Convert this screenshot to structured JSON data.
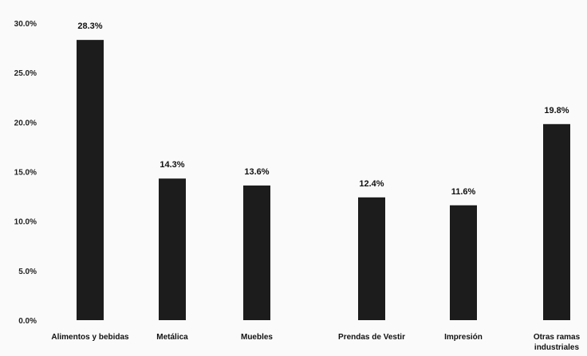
{
  "chart_data": {
    "type": "bar",
    "categories": [
      "Alimentos y bebidas",
      "Metálica",
      "Muebles",
      "Prendas de Vestir",
      "Impresión",
      "Otras ramas industriales"
    ],
    "values": [
      28.3,
      14.3,
      13.6,
      12.4,
      11.6,
      19.8
    ],
    "value_labels": [
      "28.3%",
      "14.3%",
      "13.6%",
      "12.4%",
      "11.6%",
      "19.8%"
    ],
    "ytick_labels": [
      "0.0%",
      "5.0%",
      "10.0%",
      "15.0%",
      "20.0%",
      "25.0%",
      "30.0%"
    ],
    "ylim": [
      0,
      30
    ],
    "title": "",
    "xlabel": "",
    "ylabel": "",
    "grid": false,
    "legend": "none",
    "bar_color": "#1c1c1c"
  }
}
